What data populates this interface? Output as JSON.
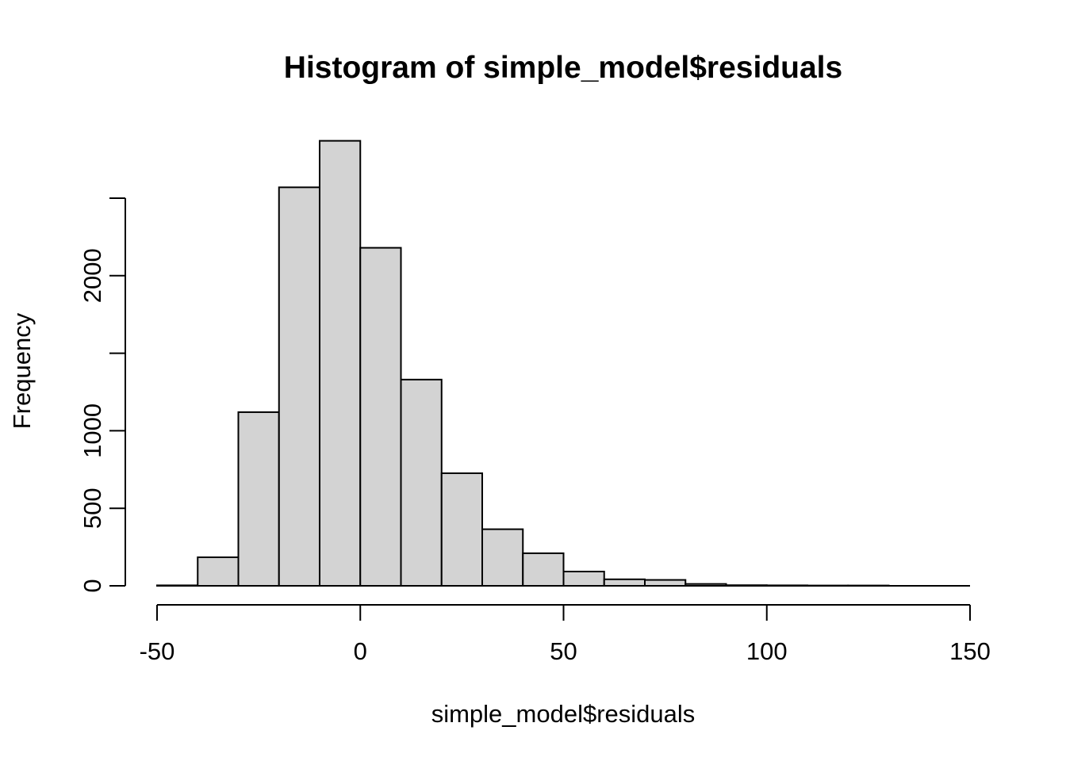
{
  "figure": {
    "title": "Histogram of simple_model$residuals",
    "xlabel": "simple_model$residuals",
    "ylabel": "Frequency"
  },
  "chart_data": {
    "type": "bar",
    "subtype": "histogram",
    "title": "Histogram of simple_model$residuals",
    "xlabel": "simple_model$residuals",
    "ylabel": "Frequency",
    "breaks": [
      -50,
      -40,
      -30,
      -20,
      -10,
      0,
      10,
      20,
      30,
      40,
      50,
      60,
      70,
      80,
      90,
      100,
      110,
      120,
      130,
      140,
      150
    ],
    "counts": [
      3,
      184,
      1120,
      2570,
      2870,
      2180,
      1330,
      726,
      365,
      210,
      92,
      42,
      38,
      12,
      4,
      3,
      2,
      2,
      0,
      0
    ],
    "xlim": [
      -50,
      150
    ],
    "ylim": [
      0,
      2870
    ],
    "x_ticks": [
      {
        "value": -50,
        "label": "-50"
      },
      {
        "value": 0,
        "label": "0"
      },
      {
        "value": 50,
        "label": "50"
      },
      {
        "value": 100,
        "label": "100"
      },
      {
        "value": 150,
        "label": "150"
      }
    ],
    "y_ticks": [
      {
        "value": 0,
        "label": "0"
      },
      {
        "value": 500,
        "label": "500"
      },
      {
        "value": 1000,
        "label": "1000"
      },
      {
        "value": 1500,
        "label": ""
      },
      {
        "value": 2000,
        "label": "2000"
      },
      {
        "value": 2500,
        "label": ""
      }
    ],
    "grid": false,
    "legend": null,
    "colors": {
      "bar_fill": "#d3d3d3",
      "bar_stroke": "#000000",
      "axis": "#000000",
      "background": "#ffffff",
      "text": "#000000"
    }
  }
}
